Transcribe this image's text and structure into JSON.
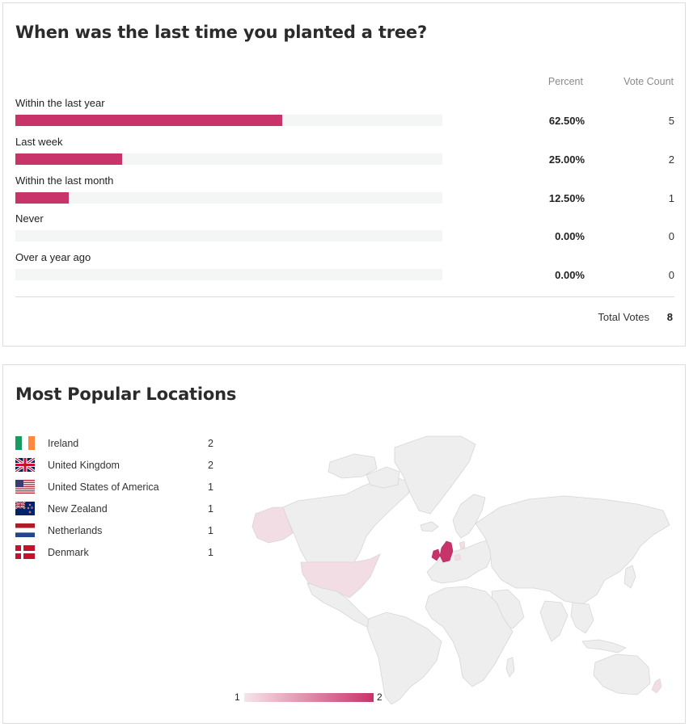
{
  "poll": {
    "question": "When was the last time you planted a tree?",
    "col_percent": "Percent",
    "col_votes": "Vote Count",
    "bar_color": "#c8336a",
    "answers": [
      {
        "label": "Within the last year",
        "percent": "62.50%",
        "fraction": 0.625,
        "votes": "5"
      },
      {
        "label": "Last week",
        "percent": "25.00%",
        "fraction": 0.25,
        "votes": "2"
      },
      {
        "label": "Within the last month",
        "percent": "12.50%",
        "fraction": 0.125,
        "votes": "1"
      },
      {
        "label": "Never",
        "percent": "0.00%",
        "fraction": 0,
        "votes": "0"
      },
      {
        "label": "Over a year ago",
        "percent": "0.00%",
        "fraction": 0,
        "votes": "0"
      }
    ],
    "total_label": "Total Votes",
    "total_value": "8"
  },
  "locations": {
    "title": "Most Popular Locations",
    "items": [
      {
        "name": "Ireland",
        "count": "2",
        "flag": "ireland-flag-icon"
      },
      {
        "name": "United Kingdom",
        "count": "2",
        "flag": "uk-flag-icon"
      },
      {
        "name": "United States of America",
        "count": "1",
        "flag": "usa-flag-icon"
      },
      {
        "name": "New Zealand",
        "count": "1",
        "flag": "new-zealand-flag-icon"
      },
      {
        "name": "Netherlands",
        "count": "1",
        "flag": "netherlands-flag-icon"
      },
      {
        "name": "Denmark",
        "count": "1",
        "flag": "denmark-flag-icon"
      }
    ],
    "legend_min": "1",
    "legend_max": "2",
    "map_high_color": "#c8336a",
    "map_low_color": "#f3dde4",
    "map_base_color": "#eeeeee"
  }
}
